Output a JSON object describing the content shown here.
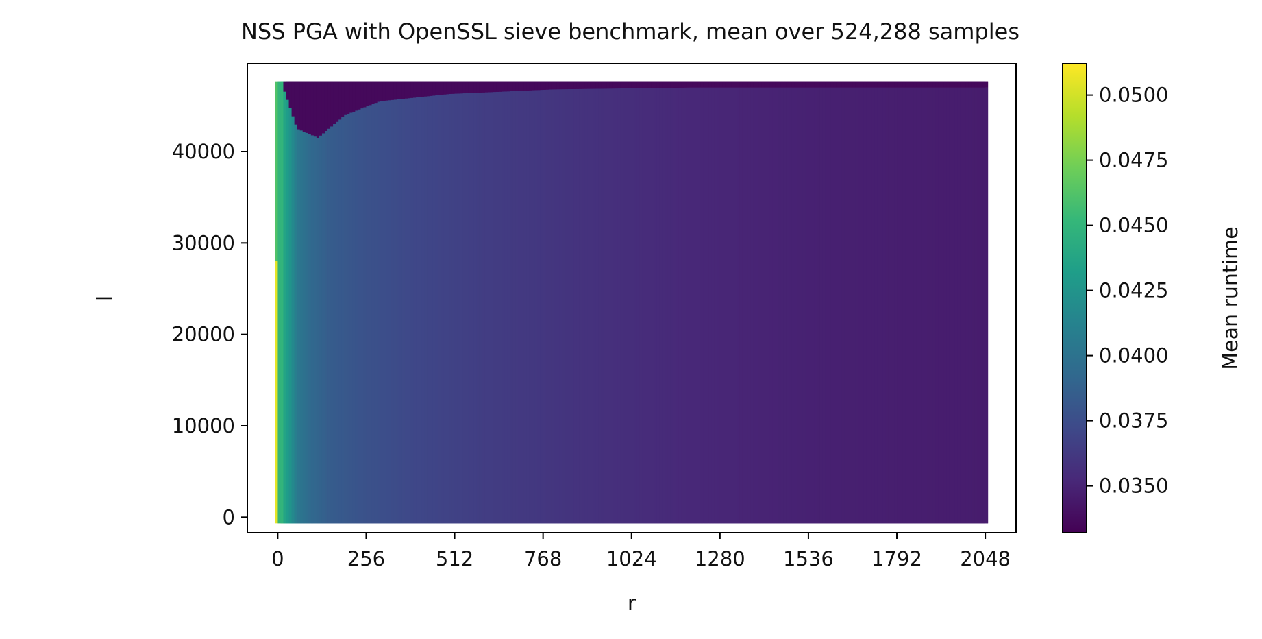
{
  "chart_data": {
    "type": "heatmap",
    "title": "NSS PGA with OpenSSL sieve benchmark, mean over 524,288 samples",
    "xlabel": "r",
    "ylabel": "l",
    "xlim": [
      -88,
      2137
    ],
    "ylim": [
      -1700,
      49600
    ],
    "x_ticks": [
      0,
      256,
      512,
      768,
      1024,
      1280,
      1536,
      1792,
      2048
    ],
    "x_tick_labels": [
      "0",
      "256",
      "512",
      "768",
      "1024",
      "1280",
      "1536",
      "1792",
      "2048"
    ],
    "y_ticks": [
      0,
      10000,
      20000,
      30000,
      40000
    ],
    "y_tick_labels": [
      "0",
      "10000",
      "20000",
      "30000",
      "40000"
    ],
    "r_range": [
      0,
      2048
    ],
    "l_range": [
      0,
      47000
    ],
    "colorbar": {
      "label": "Mean runtime",
      "colormap": "viridis",
      "range": [
        0.0332,
        0.0512
      ],
      "ticks": [
        0.035,
        0.0375,
        0.04,
        0.0425,
        0.045,
        0.0475,
        0.05
      ],
      "tick_labels": [
        "0.0350",
        "0.0375",
        "0.0400",
        "0.0425",
        "0.0450",
        "0.0475",
        "0.0500"
      ]
    },
    "runtime_profile_vs_r": {
      "r": [
        0,
        5,
        10,
        20,
        40,
        60,
        100,
        150,
        250,
        400,
        600,
        900,
        1200,
        1600,
        2048
      ],
      "mean_runtime": [
        0.0505,
        0.0495,
        0.047,
        0.044,
        0.0425,
        0.0405,
        0.0393,
        0.0385,
        0.0378,
        0.0371,
        0.0365,
        0.0358,
        0.0352,
        0.0348,
        0.0346
      ]
    },
    "low_runtime_region_top": {
      "r": [
        20,
        60,
        120,
        200,
        300,
        500,
        800,
        1200,
        2048
      ],
      "l_start": [
        47000,
        42500,
        41500,
        44000,
        45500,
        46300,
        46800,
        47000,
        47000
      ],
      "mean_runtime": 0.0336
    }
  }
}
